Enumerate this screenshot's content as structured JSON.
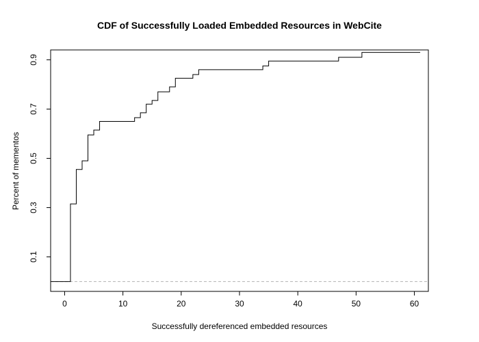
{
  "chart_data": {
    "type": "line",
    "step": true,
    "title": "CDF of Successfully Loaded Embedded Resources in WebCite",
    "xlabel": "Successfully dereferenced embedded resources",
    "ylabel": "Percent of mementos",
    "xlim": [
      -2.4,
      62.4
    ],
    "ylim": [
      -0.04,
      0.94
    ],
    "x_ticks": [
      0,
      10,
      20,
      30,
      40,
      50,
      60
    ],
    "x_tick_labels": [
      "0",
      "10",
      "20",
      "30",
      "40",
      "50",
      "60"
    ],
    "y_ticks": [
      0.1,
      0.3,
      0.5,
      0.7,
      0.9
    ],
    "y_tick_labels": [
      "0.1",
      "0.3",
      "0.5",
      "0.7",
      "0.9"
    ],
    "grid": false,
    "series": [
      {
        "x": [
          -2.4,
          1,
          2,
          3,
          4,
          5,
          6,
          12,
          13,
          14,
          15,
          16,
          18,
          19,
          22,
          23,
          34,
          35,
          47,
          51,
          61
        ],
        "y": [
          0.0,
          0.315,
          0.455,
          0.49,
          0.595,
          0.615,
          0.65,
          0.665,
          0.685,
          0.72,
          0.735,
          0.77,
          0.79,
          0.825,
          0.84,
          0.86,
          0.875,
          0.895,
          0.91,
          0.93,
          0.93
        ],
        "color": "#000000"
      }
    ],
    "reference_lines": [
      {
        "orientation": "horizontal",
        "y": 0.0,
        "style": "dashed",
        "color": "#b3b3b3"
      }
    ]
  }
}
